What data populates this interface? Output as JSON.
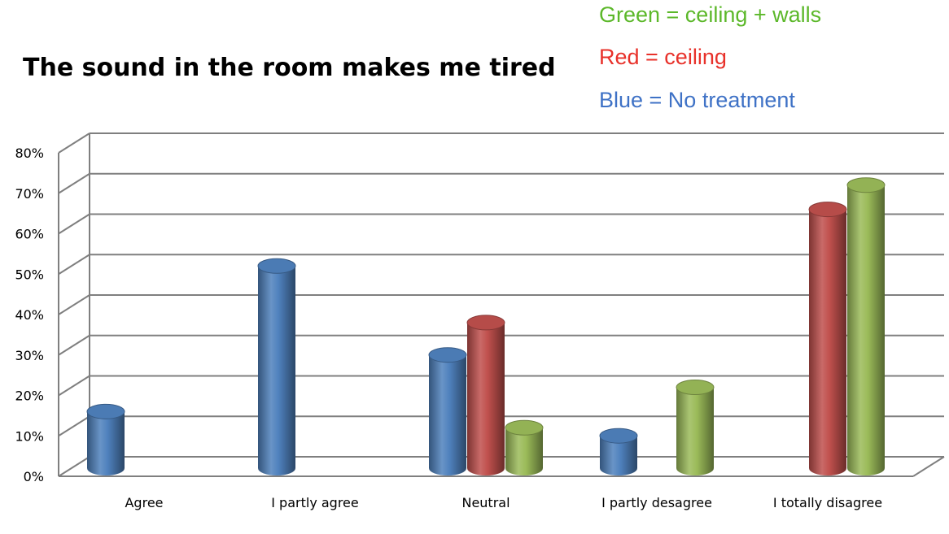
{
  "chart_data": {
    "type": "bar",
    "title": "The sound in the room makes me tired",
    "categories": [
      "Agree",
      "I partly agree",
      "Neutral",
      "I partly desagree",
      "I totally disagree"
    ],
    "series": [
      {
        "name": "Blue = No treatment",
        "color": "#4f81bd",
        "values": [
          14,
          50,
          28,
          8,
          null
        ]
      },
      {
        "name": "Red = ceiling",
        "color": "#c0504d",
        "values": [
          null,
          null,
          36,
          null,
          64
        ]
      },
      {
        "name": "Green = ceiling + walls",
        "color": "#9bbb59",
        "values": [
          null,
          null,
          10,
          20,
          70
        ]
      }
    ],
    "ylim": [
      0,
      80
    ],
    "yticks": [
      "0%",
      "10%",
      "20%",
      "30%",
      "40%",
      "50%",
      "60%",
      "70%",
      "80%"
    ],
    "grid": true,
    "xlabel": "",
    "ylabel": ""
  },
  "legend_colors": {
    "green": "#5cb82a",
    "red": "#e8312a",
    "blue": "#3f72c6"
  }
}
